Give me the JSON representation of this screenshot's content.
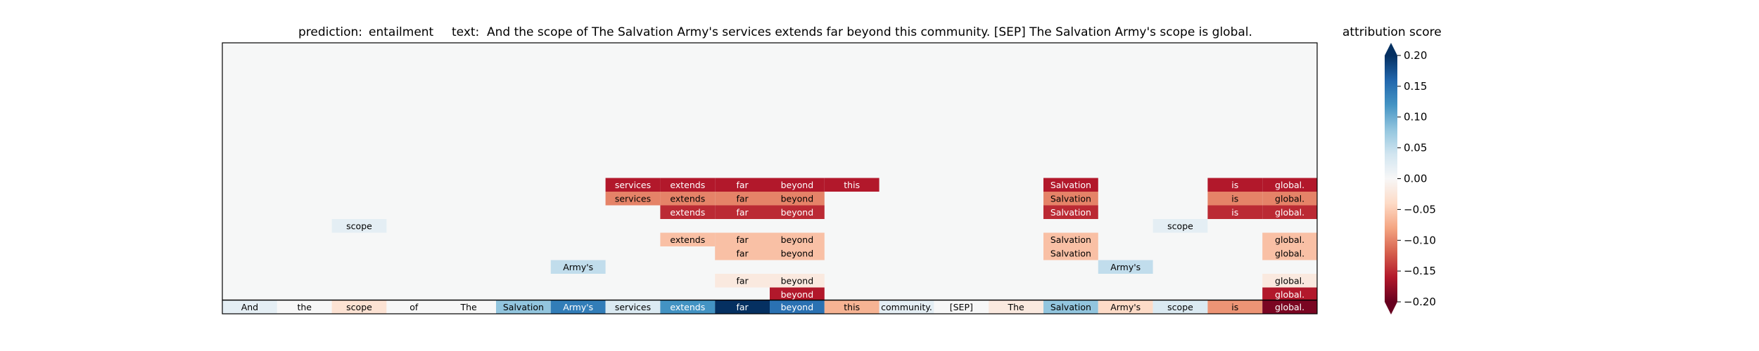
{
  "chart_data": {
    "type": "heatmap",
    "prediction_label": "prediction:",
    "prediction": "entailment",
    "text_label": "text:",
    "text": "And the scope of The Salvation Army's services extends far beyond this community. [SEP] The Salvation Army's scope is global.",
    "tokens": [
      "And",
      "the",
      "scope",
      "of",
      "The",
      "Salvation",
      "Army's",
      "services",
      "extends",
      "far",
      "beyond",
      "this",
      "community.",
      "[SEP]",
      "The",
      "Salvation",
      "Army's",
      "scope",
      "is",
      "global."
    ],
    "base_scores": [
      0.02,
      0.0,
      -0.03,
      0.0,
      0.0,
      0.08,
      0.14,
      0.03,
      0.12,
      0.22,
      0.15,
      -0.07,
      0.02,
      0.0,
      -0.02,
      0.08,
      -0.04,
      0.03,
      -0.09,
      -0.19
    ],
    "rows": [
      {
        "cells": [
          {
            "col": 7,
            "score": -0.16
          },
          {
            "col": 8,
            "score": -0.16
          },
          {
            "col": 9,
            "score": -0.16
          },
          {
            "col": 10,
            "score": -0.16
          },
          {
            "col": 11,
            "score": -0.16
          },
          {
            "col": 15,
            "score": -0.16
          },
          {
            "col": 18,
            "score": -0.16
          },
          {
            "col": 19,
            "score": -0.16
          }
        ]
      },
      {
        "cells": [
          {
            "col": 7,
            "score": -0.1
          },
          {
            "col": 8,
            "score": -0.1
          },
          {
            "col": 9,
            "score": -0.1
          },
          {
            "col": 10,
            "score": -0.1
          },
          {
            "col": 15,
            "score": -0.1
          },
          {
            "col": 18,
            "score": -0.1
          },
          {
            "col": 19,
            "score": -0.1
          }
        ]
      },
      {
        "cells": [
          {
            "col": 8,
            "score": -0.15
          },
          {
            "col": 9,
            "score": -0.15
          },
          {
            "col": 10,
            "score": -0.15
          },
          {
            "col": 15,
            "score": -0.15
          },
          {
            "col": 18,
            "score": -0.15
          },
          {
            "col": 19,
            "score": -0.15
          }
        ]
      },
      {
        "cells": [
          {
            "col": 2,
            "score": 0.02
          },
          {
            "col": 17,
            "score": 0.02
          }
        ]
      },
      {
        "cells": [
          {
            "col": 8,
            "score": -0.06
          },
          {
            "col": 9,
            "score": -0.06
          },
          {
            "col": 10,
            "score": -0.06
          },
          {
            "col": 15,
            "score": -0.06
          },
          {
            "col": 19,
            "score": -0.06
          }
        ]
      },
      {
        "cells": [
          {
            "col": 9,
            "score": -0.06
          },
          {
            "col": 10,
            "score": -0.06
          },
          {
            "col": 15,
            "score": -0.06
          },
          {
            "col": 19,
            "score": -0.06
          }
        ]
      },
      {
        "cells": [
          {
            "col": 6,
            "score": 0.05
          },
          {
            "col": 16,
            "score": 0.05
          }
        ]
      },
      {
        "cells": [
          {
            "col": 9,
            "score": -0.02
          },
          {
            "col": 10,
            "score": -0.02
          },
          {
            "col": 19,
            "score": -0.02
          }
        ]
      },
      {
        "cells": [
          {
            "col": 10,
            "score": -0.16
          },
          {
            "col": 19,
            "score": -0.16
          }
        ]
      }
    ],
    "colorbar": {
      "label": "attribution score",
      "vmin": -0.2,
      "vmax": 0.2,
      "ticks": [
        0.2,
        0.15,
        0.1,
        0.05,
        0.0,
        -0.05,
        -0.1,
        -0.15,
        -0.2
      ],
      "tick_labels": [
        "0.20",
        "0.15",
        "0.10",
        "0.05",
        "0.00",
        "−0.05",
        "−0.10",
        "−0.15",
        "−0.20"
      ],
      "colormap": "RdBu"
    },
    "background_color": "#f6f7f7",
    "grid": false
  }
}
